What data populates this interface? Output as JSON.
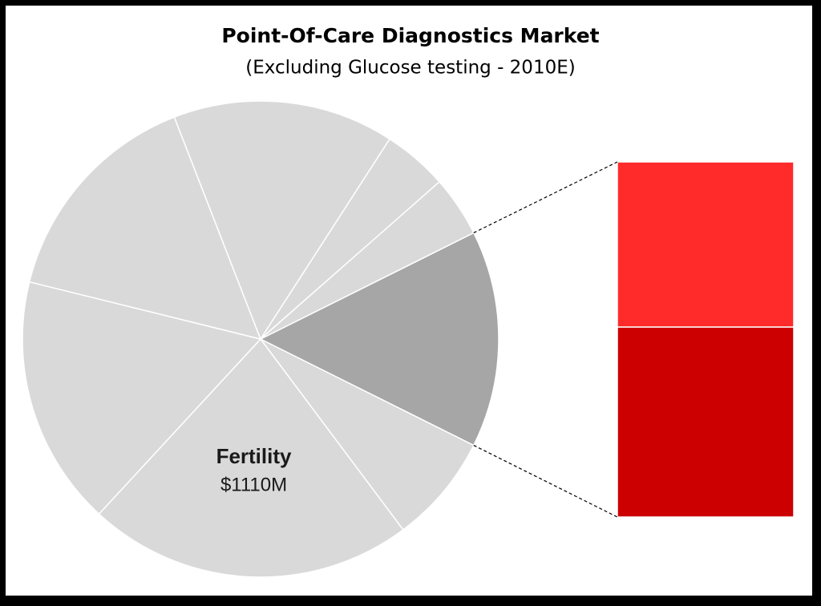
{
  "chart_data": {
    "type": "pie-of-bar",
    "title": "Point-Of-Care Diagnostics Market",
    "subtitle": "(Excluding Glucose testing - 2010E)",
    "categories": [
      null,
      null,
      "Fertility",
      null,
      null,
      null,
      null,
      null
    ],
    "values": [
      740,
      373,
      1110,
      854,
      766,
      755,
      221,
      207
    ],
    "value_labels": [
      null,
      null,
      "$1110M",
      null,
      null,
      null,
      null,
      null
    ],
    "colors": [
      "#a6a6a6",
      "#d9d9d9",
      "#d9d9d9",
      "#d9d9d9",
      "#d9d9d9",
      "#d9d9d9",
      "#d9d9d9",
      "#d9d9d9"
    ],
    "bar_values": [
      396,
      344
    ],
    "bar_colors": [
      "#cc0000",
      "#ff2a2a"
    ]
  }
}
